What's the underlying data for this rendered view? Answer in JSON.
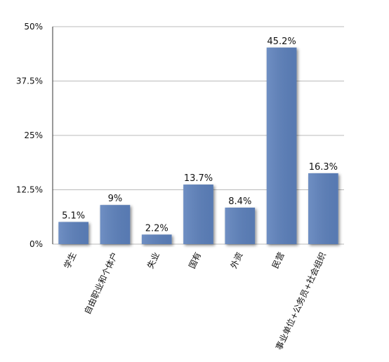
{
  "chart_data": {
    "type": "bar",
    "categories": [
      "学生",
      "自由职业和个体户",
      "失业",
      "国有",
      "外资",
      "民营",
      "事业单位+公务员+社会组织"
    ],
    "values": [
      5.1,
      9,
      2.2,
      13.7,
      8.4,
      45.2,
      16.3
    ],
    "value_labels": [
      "5.1%",
      "9%",
      "2.2%",
      "13.7%",
      "8.4%",
      "45.2%",
      "16.3%"
    ],
    "color": "#5b80bb",
    "ylim": [
      0,
      50
    ],
    "yticks": [
      {
        "value": 0,
        "label": "0%"
      },
      {
        "value": 12.5,
        "label": "12.5%"
      },
      {
        "value": 25,
        "label": "25%"
      },
      {
        "value": 37.5,
        "label": "37.5%"
      },
      {
        "value": 50,
        "label": "50%"
      }
    ],
    "grid": true
  }
}
